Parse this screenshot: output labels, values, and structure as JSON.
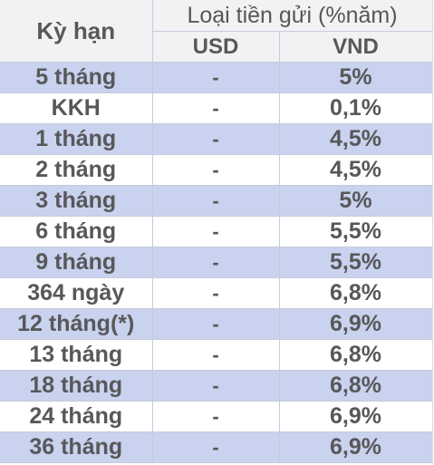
{
  "header": {
    "term_label": "Kỳ hạn",
    "group_label": "Loại tiền gửi (%năm)",
    "usd_label": "USD",
    "vnd_label": "VND"
  },
  "colors": {
    "shaded_row": "#c9d2ee",
    "plain_row": "#ffffff",
    "header_bg": "#f2f2f4",
    "text": "#58585a"
  },
  "rows": [
    {
      "term": "5 tháng",
      "usd": "-",
      "vnd": "5%"
    },
    {
      "term": "KKH",
      "usd": "-",
      "vnd": "0,1%"
    },
    {
      "term": "1 tháng",
      "usd": "-",
      "vnd": "4,5%"
    },
    {
      "term": "2 tháng",
      "usd": "-",
      "vnd": "4,5%"
    },
    {
      "term": "3 tháng",
      "usd": "-",
      "vnd": "5%"
    },
    {
      "term": "6 tháng",
      "usd": "-",
      "vnd": "5,5%"
    },
    {
      "term": "9 tháng",
      "usd": "-",
      "vnd": "5,5%"
    },
    {
      "term": "364 ngày",
      "usd": "-",
      "vnd": "6,8%"
    },
    {
      "term": "12 tháng(*)",
      "usd": "-",
      "vnd": "6,9%"
    },
    {
      "term": "13 tháng",
      "usd": "-",
      "vnd": "6,8%"
    },
    {
      "term": "18 tháng",
      "usd": "-",
      "vnd": "6,8%"
    },
    {
      "term": "24 tháng",
      "usd": "-",
      "vnd": "6,9%"
    },
    {
      "term": "36 tháng",
      "usd": "-",
      "vnd": "6,9%"
    }
  ]
}
